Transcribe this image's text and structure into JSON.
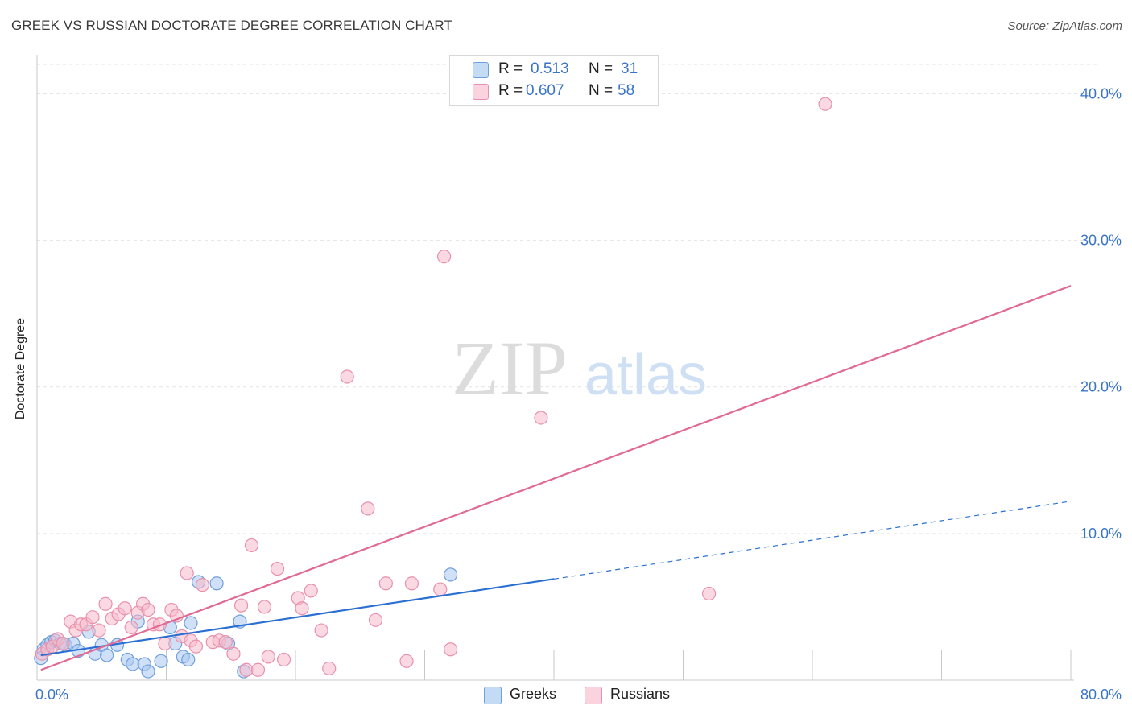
{
  "title": "GREEK VS RUSSIAN DOCTORATE DEGREE CORRELATION CHART",
  "source": "Source: ZipAtlas.com",
  "colors": {
    "greeks_fill": "#a9c8f0",
    "greeks_stroke": "#6f9fdc",
    "greeks_line": "#2a6fd1",
    "russians_fill": "#f7b9cb",
    "russians_stroke": "#e891ac",
    "russians_line": "#e06a94",
    "axis_text": "#3a74c9",
    "grid": "#e3e3e3"
  },
  "legend": {
    "rows": [
      {
        "r_label": "R =",
        "r_value": "0.513",
        "n_label": "N =",
        "n_value": "31",
        "series": "greeks"
      },
      {
        "r_label": "R =",
        "r_value": "0.607",
        "n_label": "N =",
        "n_value": "58",
        "series": "russians"
      }
    ]
  },
  "bottom_legend": {
    "greeks": "Greeks",
    "russians": "Russians"
  },
  "watermark": {
    "zip": "ZIP",
    "atlas": "atlas"
  },
  "chart_data": {
    "type": "scatter",
    "title": "GREEK VS RUSSIAN DOCTORATE DEGREE CORRELATION CHART",
    "xlabel": "",
    "ylabel": "Doctorate Degree",
    "xlim": [
      0,
      80
    ],
    "ylim": [
      0,
      42
    ],
    "x_tick_labels": [
      "0.0%",
      "80.0%"
    ],
    "y_ticks": [
      10,
      20,
      30,
      40
    ],
    "y_tick_labels": [
      "10.0%",
      "20.0%",
      "30.0%",
      "40.0%"
    ],
    "grid": true,
    "legend_position": "top-center",
    "series": [
      {
        "name": "Greeks",
        "color": "#a9c8f0",
        "points": [
          [
            0.5,
            2.1
          ],
          [
            0.8,
            2.4
          ],
          [
            1.1,
            2.6
          ],
          [
            1.4,
            2.7
          ],
          [
            1.8,
            2.5
          ],
          [
            2.2,
            2.4
          ],
          [
            2.8,
            2.5
          ],
          [
            3.2,
            2.0
          ],
          [
            4.0,
            3.3
          ],
          [
            4.5,
            1.8
          ],
          [
            5.0,
            2.4
          ],
          [
            5.4,
            1.7
          ],
          [
            6.2,
            2.4
          ],
          [
            7.0,
            1.4
          ],
          [
            7.4,
            1.1
          ],
          [
            7.8,
            4.0
          ],
          [
            8.3,
            1.1
          ],
          [
            8.6,
            0.6
          ],
          [
            9.6,
            1.3
          ],
          [
            10.3,
            3.6
          ],
          [
            10.7,
            2.5
          ],
          [
            11.3,
            1.6
          ],
          [
            11.7,
            1.4
          ],
          [
            11.9,
            3.9
          ],
          [
            12.5,
            6.7
          ],
          [
            13.9,
            6.6
          ],
          [
            14.8,
            2.5
          ],
          [
            15.7,
            4.0
          ],
          [
            16.0,
            0.6
          ],
          [
            32.0,
            7.2
          ],
          [
            0.3,
            1.5
          ]
        ],
        "trend": {
          "x1": 0.3,
          "y1": 1.7,
          "x2": 40.0,
          "y2": 6.9,
          "dash_to_x": 80.0,
          "dash_to_y": 12.2
        }
      },
      {
        "name": "Russians",
        "color": "#f7b9cb",
        "points": [
          [
            0.4,
            1.8
          ],
          [
            0.8,
            2.1
          ],
          [
            1.2,
            2.3
          ],
          [
            1.6,
            2.8
          ],
          [
            2.0,
            2.5
          ],
          [
            2.6,
            4.0
          ],
          [
            3.0,
            3.4
          ],
          [
            3.4,
            3.8
          ],
          [
            3.8,
            3.8
          ],
          [
            4.3,
            4.3
          ],
          [
            4.8,
            3.4
          ],
          [
            5.3,
            5.2
          ],
          [
            5.8,
            4.2
          ],
          [
            6.3,
            4.5
          ],
          [
            6.8,
            4.9
          ],
          [
            7.3,
            3.6
          ],
          [
            7.8,
            4.6
          ],
          [
            8.2,
            5.2
          ],
          [
            8.6,
            4.8
          ],
          [
            9.0,
            3.8
          ],
          [
            9.5,
            3.8
          ],
          [
            9.9,
            2.5
          ],
          [
            10.4,
            4.8
          ],
          [
            10.8,
            4.4
          ],
          [
            11.2,
            3.0
          ],
          [
            11.6,
            7.3
          ],
          [
            11.9,
            2.7
          ],
          [
            12.3,
            2.3
          ],
          [
            12.8,
            6.5
          ],
          [
            13.6,
            2.6
          ],
          [
            14.1,
            2.7
          ],
          [
            14.6,
            2.6
          ],
          [
            15.2,
            1.8
          ],
          [
            15.8,
            5.1
          ],
          [
            16.2,
            0.7
          ],
          [
            16.6,
            9.2
          ],
          [
            17.1,
            0.7
          ],
          [
            17.6,
            5.0
          ],
          [
            17.9,
            1.6
          ],
          [
            18.6,
            7.6
          ],
          [
            19.1,
            1.4
          ],
          [
            20.2,
            5.6
          ],
          [
            20.5,
            4.9
          ],
          [
            21.2,
            6.1
          ],
          [
            22.0,
            3.4
          ],
          [
            22.6,
            0.8
          ],
          [
            24.0,
            20.7
          ],
          [
            25.6,
            11.7
          ],
          [
            26.2,
            4.1
          ],
          [
            27.0,
            6.6
          ],
          [
            28.6,
            1.3
          ],
          [
            29.0,
            6.6
          ],
          [
            31.2,
            6.2
          ],
          [
            31.5,
            28.9
          ],
          [
            32.0,
            2.1
          ],
          [
            39.0,
            17.9
          ],
          [
            52.0,
            5.9
          ],
          [
            61.0,
            39.3
          ]
        ],
        "trend": {
          "x1": 0.3,
          "y1": 0.7,
          "x2": 80.0,
          "y2": 26.9
        }
      }
    ]
  }
}
